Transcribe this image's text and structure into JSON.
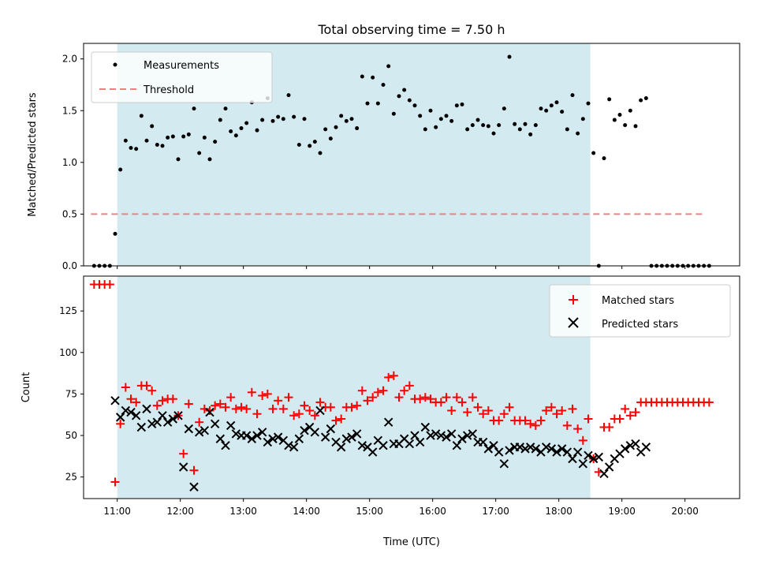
{
  "chart_data": [
    {
      "type": "scatter",
      "title": "Total observing time = 7.50 h",
      "xlabel": "",
      "ylabel": "Matched/Predicted stars",
      "xlim": [
        "10:28",
        "20:52"
      ],
      "ylim": [
        0,
        2.15
      ],
      "yticks": [
        "0.0",
        "0.5",
        "1.0",
        "1.5",
        "2.0"
      ],
      "grid": false,
      "legend_placement": "top-left",
      "shaded_region": {
        "start": "11:00",
        "end": "18:30",
        "color": "#d3eaf0"
      },
      "threshold": {
        "name": "Threshold",
        "value": 0.5,
        "start": "10:35",
        "end": "20:20",
        "color": "#f08080"
      },
      "series": [
        {
          "name": "Measurements",
          "color": "#000000",
          "x": [
            "10:38",
            "10:43",
            "10:48",
            "10:53",
            "10:58",
            "11:03",
            "11:08",
            "11:13",
            "11:18",
            "11:23",
            "11:28",
            "11:33",
            "11:38",
            "11:43",
            "11:48",
            "11:53",
            "11:58",
            "12:03",
            "12:08",
            "12:13",
            "12:18",
            "12:23",
            "12:28",
            "12:33",
            "12:38",
            "12:43",
            "12:48",
            "12:53",
            "12:58",
            "13:03",
            "13:08",
            "13:13",
            "13:18",
            "13:23",
            "13:28",
            "13:33",
            "13:38",
            "13:43",
            "13:48",
            "13:53",
            "13:58",
            "14:03",
            "14:08",
            "14:13",
            "14:18",
            "14:23",
            "14:28",
            "14:33",
            "14:38",
            "14:43",
            "14:48",
            "14:53",
            "14:58",
            "15:03",
            "15:08",
            "15:13",
            "15:18",
            "15:23",
            "15:28",
            "15:33",
            "15:38",
            "15:43",
            "15:48",
            "15:53",
            "15:58",
            "16:03",
            "16:08",
            "16:13",
            "16:18",
            "16:23",
            "16:28",
            "16:33",
            "16:38",
            "16:43",
            "16:48",
            "16:53",
            "16:58",
            "17:03",
            "17:08",
            "17:13",
            "17:18",
            "17:23",
            "17:28",
            "17:33",
            "17:38",
            "17:43",
            "17:48",
            "17:53",
            "17:58",
            "18:03",
            "18:08",
            "18:13",
            "18:18",
            "18:23",
            "18:28",
            "18:33",
            "18:38",
            "18:43",
            "18:48",
            "18:53",
            "18:58",
            "19:03",
            "19:08",
            "19:13",
            "19:18",
            "19:23",
            "19:28",
            "19:33",
            "19:38",
            "19:43",
            "19:48",
            "19:53",
            "19:58",
            "20:03",
            "20:08",
            "20:13",
            "20:18",
            "20:23"
          ],
          "y": [
            0,
            0,
            0,
            0,
            0.31,
            0.93,
            1.21,
            1.14,
            1.13,
            1.45,
            1.21,
            1.35,
            1.17,
            1.16,
            1.24,
            1.25,
            1.03,
            1.25,
            1.27,
            1.52,
            1.09,
            1.24,
            1.03,
            1.2,
            1.41,
            1.52,
            1.3,
            1.26,
            1.33,
            1.38,
            1.58,
            1.31,
            1.41,
            1.62,
            1.4,
            1.44,
            1.42,
            1.65,
            1.44,
            1.17,
            1.42,
            1.16,
            1.2,
            1.09,
            1.32,
            1.23,
            1.34,
            1.45,
            1.4,
            1.42,
            1.33,
            1.83,
            1.57,
            1.82,
            1.57,
            1.75,
            1.93,
            1.47,
            1.64,
            1.7,
            1.6,
            1.55,
            1.45,
            1.32,
            1.5,
            1.34,
            1.42,
            1.45,
            1.4,
            1.55,
            1.56,
            1.32,
            1.36,
            1.41,
            1.36,
            1.35,
            1.28,
            1.36,
            1.52,
            2.02,
            1.37,
            1.32,
            1.37,
            1.27,
            1.36,
            1.52,
            1.5,
            1.55,
            1.58,
            1.49,
            1.32,
            1.65,
            1.28,
            1.42,
            1.57,
            1.09,
            0,
            1.04,
            1.61,
            1.41,
            1.46,
            1.36,
            1.5,
            1.35,
            1.6,
            1.62,
            0,
            0,
            0,
            0,
            0,
            0,
            0,
            0,
            0,
            0,
            0,
            0
          ]
        }
      ]
    },
    {
      "type": "scatter",
      "xlabel": "Time (UTC)",
      "ylabel": "Count",
      "xlim": [
        "10:28",
        "20:52"
      ],
      "ylim": [
        12,
        146
      ],
      "xticks": [
        "11:00",
        "12:00",
        "13:00",
        "14:00",
        "15:00",
        "16:00",
        "17:00",
        "18:00",
        "19:00",
        "20:00"
      ],
      "yticks": [
        "25",
        "50",
        "75",
        "100",
        "125"
      ],
      "grid": false,
      "legend_placement": "top-right",
      "shaded_region": {
        "start": "11:00",
        "end": "18:30",
        "color": "#d3eaf0"
      },
      "series": [
        {
          "name": "Matched stars",
          "marker": "+",
          "color": "#ff0000",
          "x": [
            "10:38",
            "10:43",
            "10:48",
            "10:53",
            "10:58",
            "11:03",
            "11:08",
            "11:13",
            "11:18",
            "11:23",
            "11:28",
            "11:33",
            "11:38",
            "11:43",
            "11:48",
            "11:53",
            "11:58",
            "12:03",
            "12:08",
            "12:13",
            "12:18",
            "12:23",
            "12:28",
            "12:33",
            "12:38",
            "12:43",
            "12:48",
            "12:53",
            "12:58",
            "13:03",
            "13:08",
            "13:13",
            "13:18",
            "13:23",
            "13:28",
            "13:33",
            "13:38",
            "13:43",
            "13:48",
            "13:53",
            "13:58",
            "14:03",
            "14:08",
            "14:13",
            "14:18",
            "14:23",
            "14:28",
            "14:33",
            "14:38",
            "14:43",
            "14:48",
            "14:53",
            "14:58",
            "15:03",
            "15:08",
            "15:13",
            "15:18",
            "15:23",
            "15:28",
            "15:33",
            "15:38",
            "15:43",
            "15:48",
            "15:53",
            "15:58",
            "16:03",
            "16:08",
            "16:13",
            "16:18",
            "16:23",
            "16:28",
            "16:33",
            "16:38",
            "16:43",
            "16:48",
            "16:53",
            "16:58",
            "17:03",
            "17:08",
            "17:13",
            "17:18",
            "17:23",
            "17:28",
            "17:33",
            "17:38",
            "17:43",
            "17:48",
            "17:53",
            "17:58",
            "18:03",
            "18:08",
            "18:13",
            "18:18",
            "18:23",
            "18:28",
            "18:33",
            "18:38",
            "18:43",
            "18:48",
            "18:53",
            "18:58",
            "19:03",
            "19:08",
            "19:13",
            "19:18",
            "19:23",
            "19:28",
            "19:33",
            "19:38",
            "19:43",
            "19:48",
            "19:53",
            "19:58",
            "20:03",
            "20:08",
            "20:13",
            "20:18",
            "20:23"
          ],
          "y": [
            141,
            141,
            141,
            141,
            22,
            57,
            79,
            72,
            70,
            80,
            80,
            77,
            68,
            71,
            72,
            72,
            62,
            39,
            69,
            29,
            58,
            66,
            65,
            68,
            69,
            67,
            73,
            66,
            67,
            66,
            76,
            63,
            74,
            75,
            66,
            71,
            66,
            73,
            62,
            63,
            68,
            65,
            62,
            70,
            67,
            67,
            59,
            60,
            67,
            67,
            68,
            77,
            71,
            73,
            76,
            77,
            85,
            86,
            73,
            77,
            80,
            72,
            72,
            73,
            72,
            70,
            70,
            73,
            65,
            73,
            70,
            64,
            73,
            67,
            63,
            65,
            59,
            59,
            63,
            67,
            59,
            59,
            59,
            57,
            56,
            59,
            65,
            67,
            63,
            65,
            56,
            66,
            54,
            47,
            60,
            36,
            28,
            55,
            55,
            60,
            60,
            66,
            62,
            64,
            70,
            70,
            70,
            70,
            70,
            70,
            70,
            70,
            70,
            70,
            70,
            70,
            70,
            70
          ]
        },
        {
          "name": "Predicted stars",
          "marker": "x",
          "color": "#000000",
          "x": [
            "10:58",
            "11:03",
            "11:08",
            "11:13",
            "11:18",
            "11:23",
            "11:28",
            "11:33",
            "11:38",
            "11:43",
            "11:48",
            "11:53",
            "11:58",
            "12:03",
            "12:08",
            "12:13",
            "12:18",
            "12:23",
            "12:28",
            "12:33",
            "12:38",
            "12:43",
            "12:48",
            "12:53",
            "12:58",
            "13:03",
            "13:08",
            "13:13",
            "13:18",
            "13:23",
            "13:28",
            "13:33",
            "13:38",
            "13:43",
            "13:48",
            "13:53",
            "13:58",
            "14:03",
            "14:08",
            "14:13",
            "14:18",
            "14:23",
            "14:28",
            "14:33",
            "14:38",
            "14:43",
            "14:48",
            "14:53",
            "14:58",
            "15:03",
            "15:08",
            "15:13",
            "15:18",
            "15:23",
            "15:28",
            "15:33",
            "15:38",
            "15:43",
            "15:48",
            "15:53",
            "15:58",
            "16:03",
            "16:08",
            "16:13",
            "16:18",
            "16:23",
            "16:28",
            "16:33",
            "16:38",
            "16:43",
            "16:48",
            "16:53",
            "16:58",
            "17:03",
            "17:08",
            "17:13",
            "17:18",
            "17:23",
            "17:28",
            "17:33",
            "17:38",
            "17:43",
            "17:48",
            "17:53",
            "17:58",
            "18:03",
            "18:08",
            "18:13",
            "18:18",
            "18:23",
            "18:28",
            "18:33",
            "18:38",
            "18:43",
            "18:48",
            "18:53",
            "18:58",
            "19:03",
            "19:08",
            "19:13",
            "19:18",
            "19:23"
          ],
          "y": [
            71,
            61,
            65,
            64,
            62,
            55,
            66,
            57,
            58,
            62,
            58,
            60,
            62,
            31,
            54,
            19,
            52,
            53,
            64,
            57,
            48,
            44,
            56,
            51,
            50,
            50,
            48,
            50,
            52,
            46,
            48,
            49,
            47,
            44,
            43,
            48,
            53,
            55,
            52,
            65,
            49,
            54,
            46,
            43,
            48,
            49,
            51,
            44,
            43,
            40,
            47,
            44,
            58,
            45,
            45,
            48,
            45,
            50,
            46,
            55,
            50,
            51,
            50,
            49,
            51,
            44,
            48,
            50,
            51,
            46,
            46,
            42,
            44,
            40,
            33,
            41,
            43,
            43,
            42,
            43,
            42,
            40,
            43,
            42,
            40,
            42,
            40,
            36,
            40,
            33,
            38,
            36,
            37,
            27,
            31,
            36,
            39,
            42,
            44,
            45,
            40,
            43
          ]
        }
      ]
    }
  ]
}
